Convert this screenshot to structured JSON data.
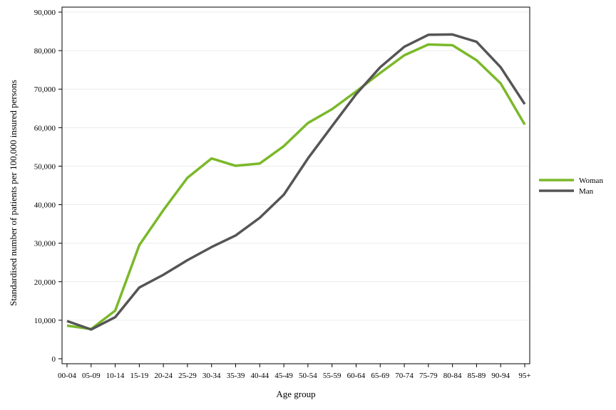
{
  "chart_data": {
    "type": "line",
    "xlabel": "Age group",
    "ylabel": "Standardised number of patients per 100,000 insured persons",
    "categories": [
      "00-04",
      "05-09",
      "10-14",
      "15-19",
      "20-24",
      "25-29",
      "30-34",
      "35-39",
      "40-44",
      "45-49",
      "50-54",
      "55-59",
      "60-64",
      "65-69",
      "70-74",
      "75-79",
      "80-84",
      "85-89",
      "90-94",
      "95+"
    ],
    "ylim": [
      0,
      90000
    ],
    "yticks": [
      0,
      10000,
      20000,
      30000,
      40000,
      50000,
      60000,
      70000,
      80000,
      90000
    ],
    "ytick_labels": [
      "0",
      "10,000",
      "20,000",
      "30,000",
      "40,000",
      "50,000",
      "60,000",
      "70,000",
      "80,000",
      "90,000"
    ],
    "grid": true,
    "legend_position": "right",
    "series": [
      {
        "name": "Woman",
        "color": "#7ab929",
        "values": [
          8600,
          7700,
          12500,
          29500,
          38600,
          47000,
          52000,
          50100,
          50700,
          55200,
          61200,
          64800,
          69400,
          74200,
          78800,
          81600,
          81400,
          77500,
          71500,
          60800
        ]
      },
      {
        "name": "Man",
        "color": "#555555",
        "values": [
          9800,
          7600,
          10800,
          18500,
          21800,
          25600,
          29000,
          32000,
          36600,
          42600,
          52000,
          60400,
          68700,
          75700,
          81000,
          84100,
          84200,
          82300,
          75700,
          66100
        ]
      }
    ]
  }
}
